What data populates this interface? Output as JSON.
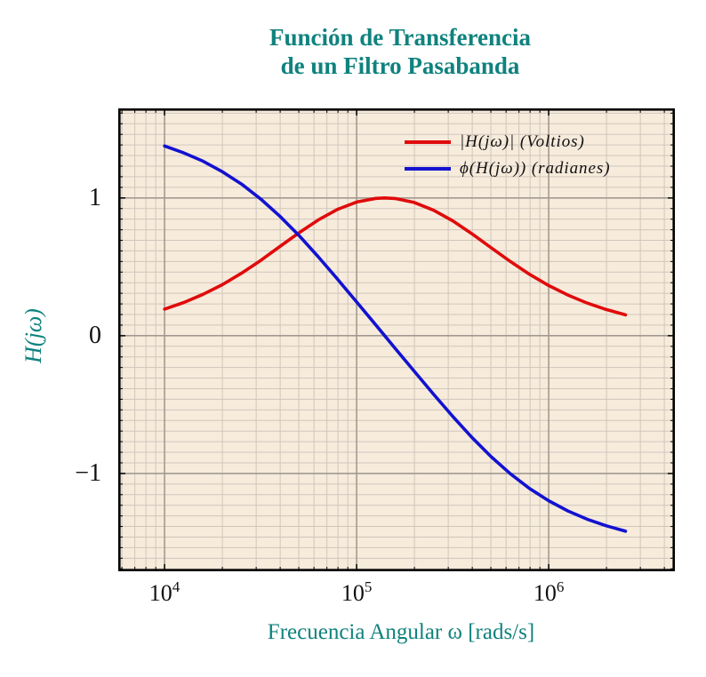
{
  "title": {
    "line1": "Función de Transferencia",
    "line2": "de un Filtro Pasabanda"
  },
  "axes": {
    "x_label": "Frecuencia Angular ω [rads/s]",
    "y_label": "H(jω)"
  },
  "colors": {
    "accent_teal": "#0f827e",
    "plot_background": "#f7ebdc",
    "grid_minor": "#cfc6bb",
    "grid_major": "#a29a90",
    "frame": "#000000",
    "magnitude_red": "#e00b0b",
    "phase_blue": "#1212d0"
  },
  "chart_data": {
    "type": "line",
    "x_scale": "log",
    "grid": "both",
    "legend_position": "top-right-inside",
    "xlim_log": [
      3.759,
      6.657
    ],
    "ylim": [
      -1.71,
      1.65
    ],
    "x_ticks": [
      {
        "v": 10000,
        "base": "10",
        "exp": "4"
      },
      {
        "v": 100000,
        "base": "10",
        "exp": "5"
      },
      {
        "v": 1000000,
        "base": "10",
        "exp": "6"
      }
    ],
    "y_ticks": [
      {
        "v": 1,
        "label": "1"
      },
      {
        "v": 0,
        "label": "0"
      },
      {
        "v": -1,
        "label": "−1"
      }
    ],
    "x": [
      10000,
      12589,
      15849,
      19953,
      25119,
      31623,
      39811,
      50119,
      63096,
      79433,
      100000,
      125893,
      140000,
      158489,
      199526,
      251189,
      316228,
      398107,
      501187,
      630957,
      794328,
      1000000,
      1258925,
      1584893,
      1995262,
      2511886
    ],
    "series": [
      {
        "name": "|H(jω)| (Voltios)",
        "color": "#e00b0b",
        "values": [
          0.193,
          0.241,
          0.3,
          0.37,
          0.453,
          0.546,
          0.647,
          0.747,
          0.84,
          0.917,
          0.97,
          0.997,
          1.0,
          0.996,
          0.967,
          0.911,
          0.834,
          0.74,
          0.639,
          0.539,
          0.446,
          0.364,
          0.295,
          0.237,
          0.19,
          0.151
        ]
      },
      {
        "name": "ϕ(H(jω)) (radianes)",
        "color": "#1212d0",
        "values": [
          1.377,
          1.327,
          1.267,
          1.191,
          1.101,
          0.993,
          0.868,
          0.727,
          0.573,
          0.411,
          0.245,
          0.078,
          0.0,
          -0.091,
          -0.258,
          -0.424,
          -0.585,
          -0.738,
          -0.878,
          -1.002,
          -1.109,
          -1.198,
          -1.272,
          -1.332,
          -1.38,
          -1.419
        ]
      }
    ]
  }
}
